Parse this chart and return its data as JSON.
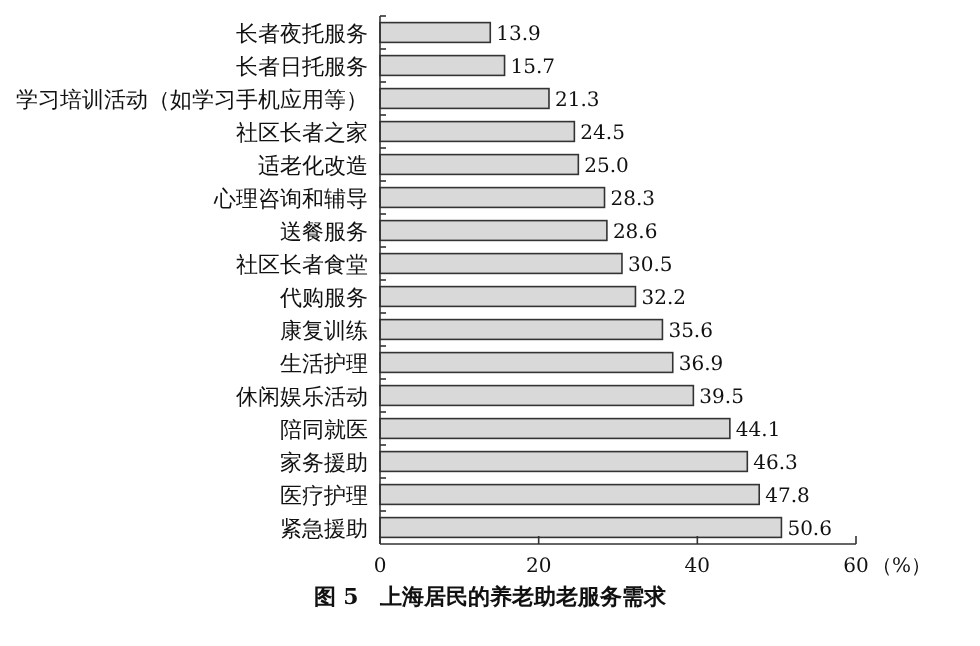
{
  "chart_data": {
    "type": "bar",
    "orientation": "horizontal",
    "title": "图 5　上海居民的养老助老服务需求",
    "xlabel": "（%）",
    "categories": [
      "长者夜托服务",
      "长者日托服务",
      "学习培训活动（如学习手机应用等）",
      "社区长者之家",
      "适老化改造",
      "心理咨询和辅导",
      "送餐服务",
      "社区长者食堂",
      "代购服务",
      "康复训练",
      "生活护理",
      "休闲娱乐活动",
      "陪同就医",
      "家务援助",
      "医疗护理",
      "紧急援助"
    ],
    "values": [
      13.9,
      15.7,
      21.3,
      24.5,
      25.0,
      28.3,
      28.6,
      30.5,
      32.2,
      35.6,
      36.9,
      39.5,
      44.1,
      46.3,
      47.8,
      50.6
    ],
    "value_labels": [
      "13.9",
      "15.7",
      "21.3",
      "24.5",
      "25.0",
      "28.3",
      "28.6",
      "30.5",
      "32.2",
      "35.6",
      "36.9",
      "39.5",
      "44.1",
      "46.3",
      "47.8",
      "50.6"
    ],
    "color": "#d9d9d9",
    "xlim": [
      0,
      60
    ],
    "xticks": [
      0,
      20,
      40,
      60
    ],
    "grid": false
  }
}
